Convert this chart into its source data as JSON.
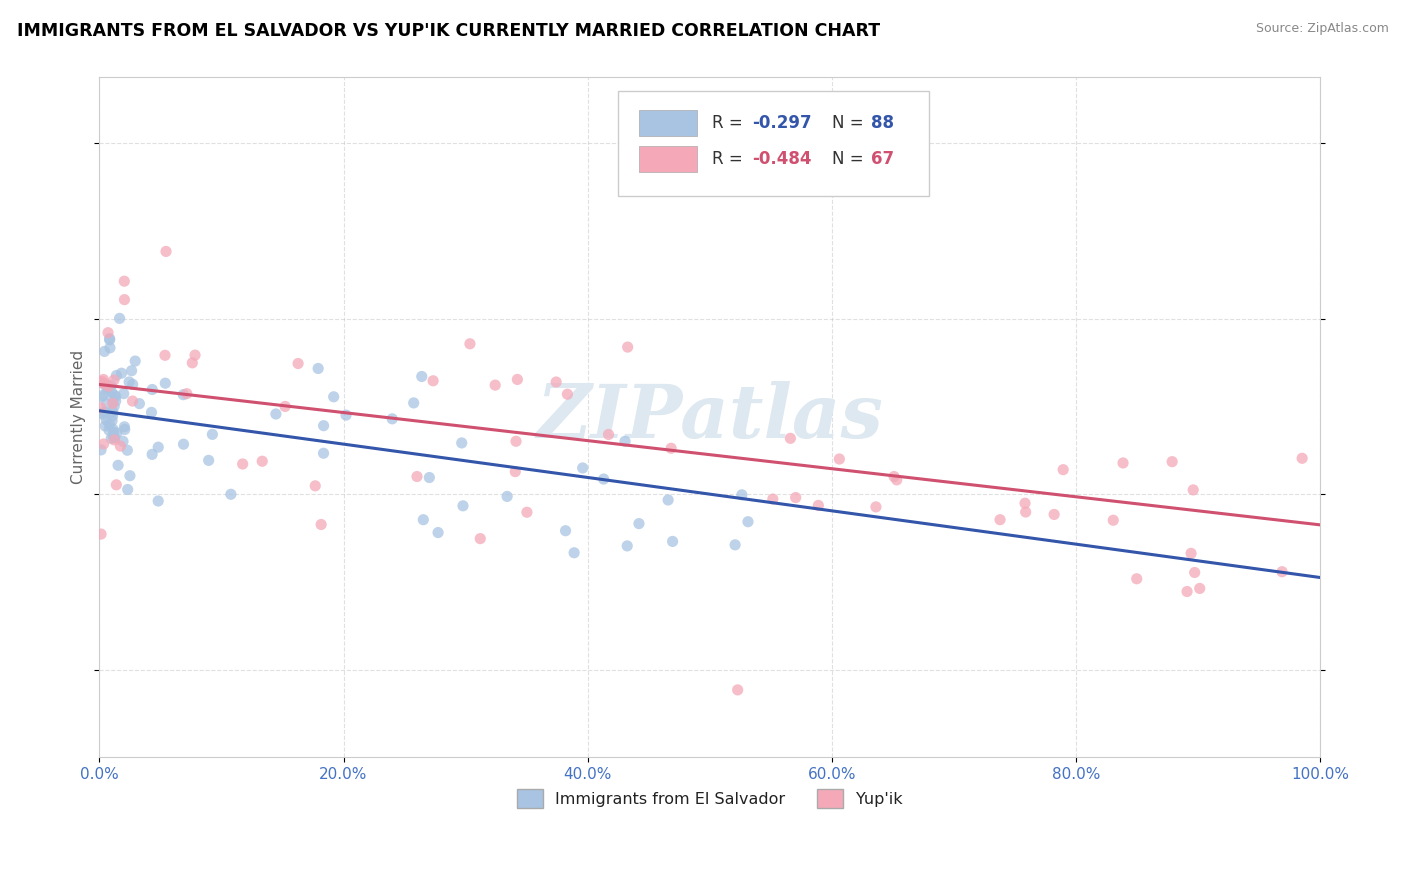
{
  "title": "IMMIGRANTS FROM EL SALVADOR VS YUP'IK CURRENTLY MARRIED CORRELATION CHART",
  "source_text": "Source: ZipAtlas.com",
  "ylabel": "Currently Married",
  "watermark": "ZIPatlas",
  "legend_blue_r": "-0.297",
  "legend_blue_n": "88",
  "legend_pink_r": "-0.484",
  "legend_pink_n": "67",
  "blue_color": "#a8c4e2",
  "pink_color": "#f4a8b8",
  "blue_line_color": "#3355aa",
  "pink_line_color": "#d05070",
  "label_blue": "Immigrants from El Salvador",
  "label_pink": "Yup'ik",
  "x_min": 0.0,
  "x_max": 1.0,
  "y_min": 0.1,
  "y_max": 0.875,
  "grid_color": "#bbbbbb",
  "title_color": "#000000",
  "tick_label_color": "#4472c4",
  "watermark_color": "#dde8f0",
  "background_color": "#ffffff",
  "blue_trend_x0": 0.0,
  "blue_trend_x1": 1.0,
  "blue_trend_y0": 0.495,
  "blue_trend_y1": 0.305,
  "pink_trend_x0": 0.0,
  "pink_trend_x1": 1.0,
  "pink_trend_y0": 0.525,
  "pink_trend_y1": 0.365
}
